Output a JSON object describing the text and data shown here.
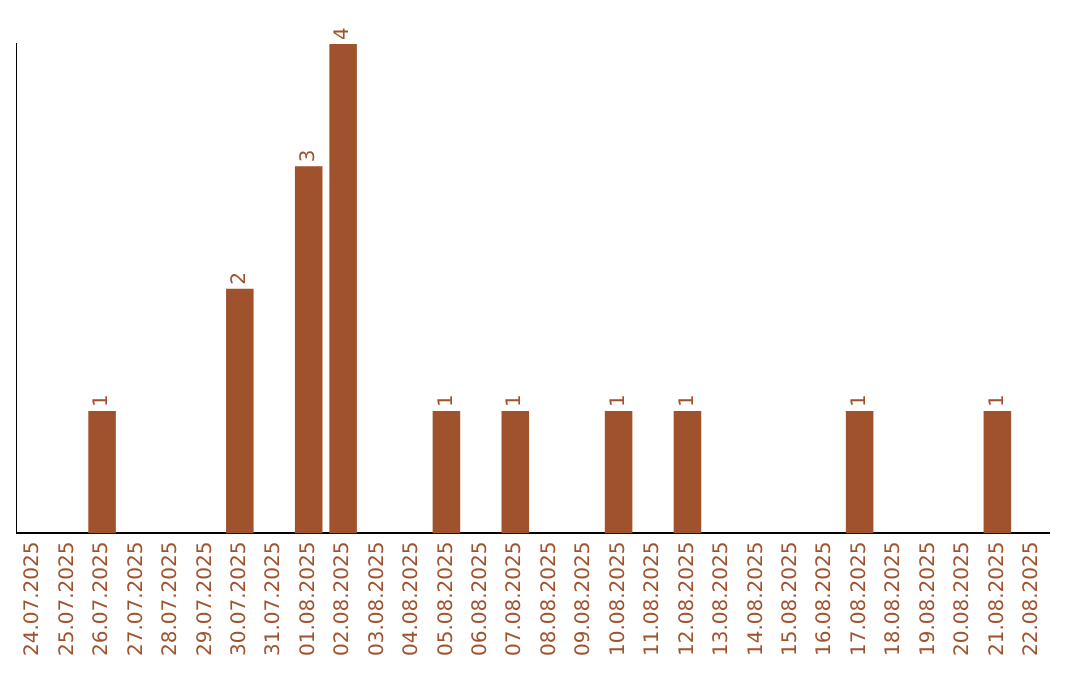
{
  "chart_data": {
    "type": "bar",
    "categories": [
      "24.07.2025",
      "25.07.2025",
      "26.07.2025",
      "27.07.2025",
      "28.07.2025",
      "29.07.2025",
      "30.07.2025",
      "31.07.2025",
      "01.08.2025",
      "02.08.2025",
      "03.08.2025",
      "04.08.2025",
      "05.08.2025",
      "06.08.2025",
      "07.08.2025",
      "08.08.2025",
      "09.08.2025",
      "10.08.2025",
      "11.08.2025",
      "12.08.2025",
      "13.08.2025",
      "14.08.2025",
      "15.08.2025",
      "16.08.2025",
      "17.08.2025",
      "18.08.2025",
      "19.08.2025",
      "20.08.2025",
      "21.08.2025",
      "22.08.2025"
    ],
    "values": [
      0,
      0,
      1,
      0,
      0,
      0,
      2,
      0,
      3,
      4,
      0,
      0,
      1,
      0,
      1,
      0,
      0,
      1,
      0,
      1,
      0,
      0,
      0,
      0,
      1,
      0,
      0,
      0,
      1,
      0
    ],
    "value_labels": [
      null,
      null,
      "1",
      null,
      null,
      null,
      "2",
      null,
      "3",
      "4",
      null,
      null,
      "1",
      null,
      "1",
      null,
      null,
      "1",
      null,
      "1",
      null,
      null,
      null,
      null,
      "1",
      null,
      null,
      null,
      "1",
      null
    ],
    "color": "#a0522d",
    "tick_labels": "x",
    "grid": false,
    "legend": false
  }
}
